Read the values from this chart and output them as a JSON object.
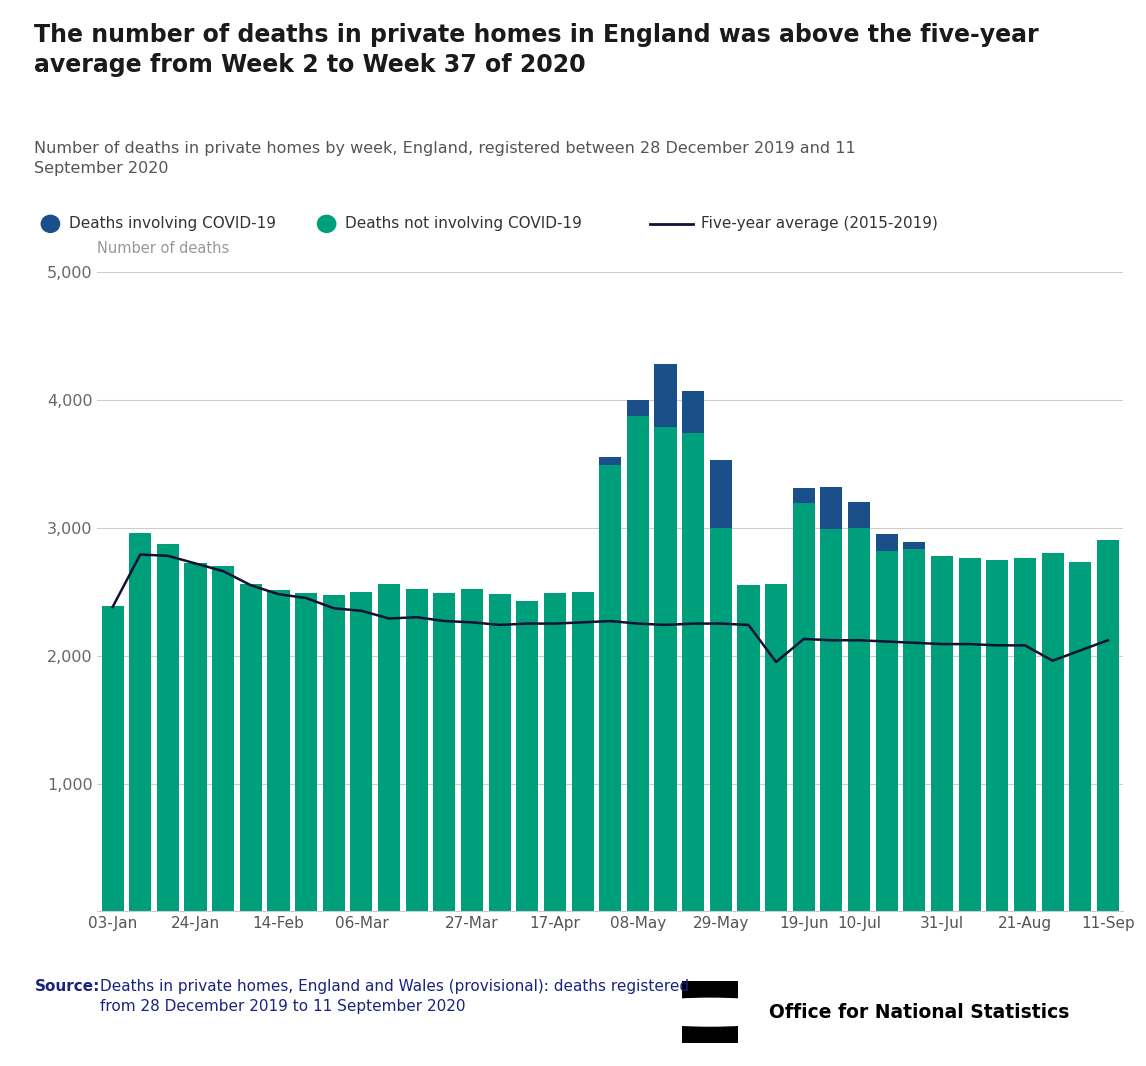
{
  "title": "The number of deaths in private homes in England was above the five-year\naverage from Week 2 to Week 37 of 2020",
  "subtitle": "Number of deaths in private homes by week, England, registered between 28 December 2019 and 11\nSeptember 2020",
  "ylabel": "Number of deaths",
  "xtick_labels": [
    "03-Jan",
    "24-Jan",
    "14-Feb",
    "06-Mar",
    "27-Mar",
    "17-Apr",
    "08-May",
    "29-May",
    "19-Jun",
    "10-Jul",
    "31-Jul",
    "21-Aug",
    "11-Sep"
  ],
  "xtick_positions": [
    0,
    3,
    6,
    9,
    13,
    16,
    19,
    22,
    25,
    27,
    30,
    33,
    36
  ],
  "ylim": [
    0,
    5000
  ],
  "yticks": [
    0,
    1000,
    2000,
    3000,
    4000,
    5000
  ],
  "color_covid": "#1b4f8a",
  "color_non_covid": "#009f7b",
  "color_avg": "#111133",
  "title_color": "#1a1a1a",
  "subtitle_color": "#555555",
  "grid_color": "#cccccc",
  "non_covid_deaths": [
    2390,
    2960,
    2870,
    2720,
    2700,
    2560,
    2510,
    2490,
    2470,
    2500,
    2560,
    2520,
    2490,
    2520,
    2480,
    2430,
    2490,
    2500,
    3490,
    3870,
    3790,
    3740,
    3000,
    2550,
    2560,
    3190,
    2990,
    3000,
    2820,
    2830,
    2780,
    2760,
    2750,
    2760,
    2800,
    2730,
    2900
  ],
  "covid_deaths": [
    0,
    0,
    0,
    0,
    0,
    0,
    0,
    0,
    0,
    0,
    0,
    0,
    0,
    0,
    0,
    0,
    0,
    0,
    60,
    130,
    490,
    330,
    530,
    0,
    0,
    120,
    330,
    200,
    130,
    60,
    0,
    0,
    0,
    0,
    0,
    0,
    0
  ],
  "five_year_avg": [
    2380,
    2790,
    2780,
    2720,
    2660,
    2550,
    2480,
    2450,
    2370,
    2350,
    2290,
    2300,
    2270,
    2260,
    2240,
    2250,
    2250,
    2260,
    2270,
    2250,
    2240,
    2250,
    2250,
    2240,
    1950,
    2130,
    2120,
    2120,
    2110,
    2100,
    2090,
    2090,
    2080,
    2080,
    1960,
    2040,
    2120
  ],
  "legend_covid": "Deaths involving COVID-19",
  "legend_non_covid": "Deaths not involving COVID-19",
  "legend_avg": "Five-year average (2015-2019)",
  "source_bold": "Source:",
  "source_rest": "Deaths in private homes, England and Wales (provisional): deaths registered\nfrom 28 December 2019 to 11 September 2020",
  "ons_text": "Office for National Statistics"
}
